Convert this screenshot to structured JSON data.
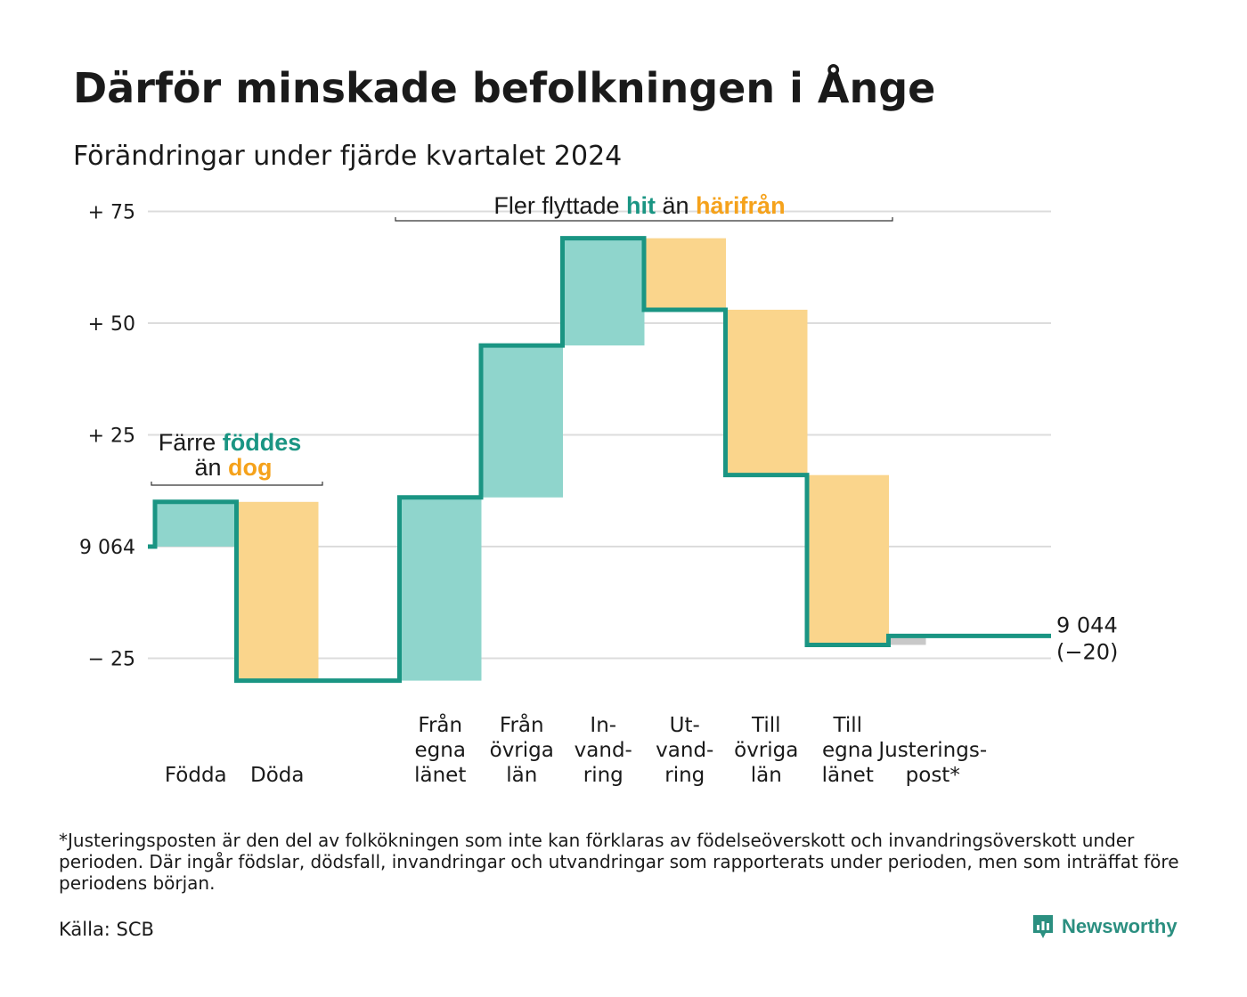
{
  "title": "Därför minskade befolkningen i Ånge",
  "subtitle": "Förändringar under fjärde kvartalet 2024",
  "colors": {
    "teal": "#1a9583",
    "teal_fill": "#8fd5cc",
    "orange": "#f5a21b",
    "orange_fill": "#fad58c",
    "adjust_fill": "#c8c8c8",
    "grid": "#dcdcdc"
  },
  "chart_data": {
    "type": "waterfall",
    "start_value": 9064,
    "end_value": 9044,
    "end_label": "9 044",
    "end_change_label": "(−20)",
    "y_tick_labels": [
      {
        "value": 75,
        "label": "+ 75"
      },
      {
        "value": 50,
        "label": "+ 50"
      },
      {
        "value": 25,
        "label": "+ 25"
      },
      {
        "value": 0,
        "label": "9 064"
      },
      {
        "value": -25,
        "label": "− 25"
      }
    ],
    "ylim": [
      -30,
      78
    ],
    "grid": true,
    "steps": [
      {
        "label": [
          "Födda"
        ],
        "change": 10,
        "kind": "in"
      },
      {
        "label": [
          "Döda"
        ],
        "change": -40,
        "kind": "out"
      },
      {
        "label": [],
        "change": 0,
        "kind": "gap"
      },
      {
        "label": [
          "Från",
          "egna",
          "länet"
        ],
        "change": 41,
        "kind": "in"
      },
      {
        "label": [
          "Från",
          "övriga",
          "län"
        ],
        "change": 34,
        "kind": "in"
      },
      {
        "label": [
          "In-",
          "vand-",
          "ring"
        ],
        "change": 24,
        "kind": "in"
      },
      {
        "label": [
          "Ut-",
          "vand-",
          "ring"
        ],
        "change": -16,
        "kind": "out"
      },
      {
        "label": [
          "Till",
          "övriga",
          "län"
        ],
        "change": -37,
        "kind": "out"
      },
      {
        "label": [
          "Till",
          "egna",
          "länet"
        ],
        "change": -38,
        "kind": "out"
      },
      {
        "label": [
          "Justerings-",
          "post*"
        ],
        "change": 2,
        "kind": "adjust"
      }
    ],
    "annotations": [
      {
        "parts": [
          {
            "text": "Fler flyttade ",
            "color": "text"
          },
          {
            "text": "hit",
            "color": "teal"
          },
          {
            "text": " än ",
            "color": "text"
          },
          {
            "text": "härifrån",
            "color": "orange"
          }
        ]
      },
      {
        "line1": [
          {
            "text": "Färre ",
            "color": "text"
          },
          {
            "text": "föddes",
            "color": "teal"
          }
        ],
        "line2": [
          {
            "text": "än ",
            "color": "text"
          },
          {
            "text": "dog",
            "color": "orange"
          }
        ]
      }
    ]
  },
  "footnote": "*Justeringsposten är den del av folkökningen som inte kan förklaras av födelseöverskott och invandringsöverskott under perioden. Där ingår födslar, dödsfall, invandringar och utvandringar som rapporterats under perioden, men som inträffat före periodens början.",
  "source": "Källa: SCB",
  "logo": {
    "text": "Newsworthy",
    "icon": "newsworthy-logo-icon"
  }
}
